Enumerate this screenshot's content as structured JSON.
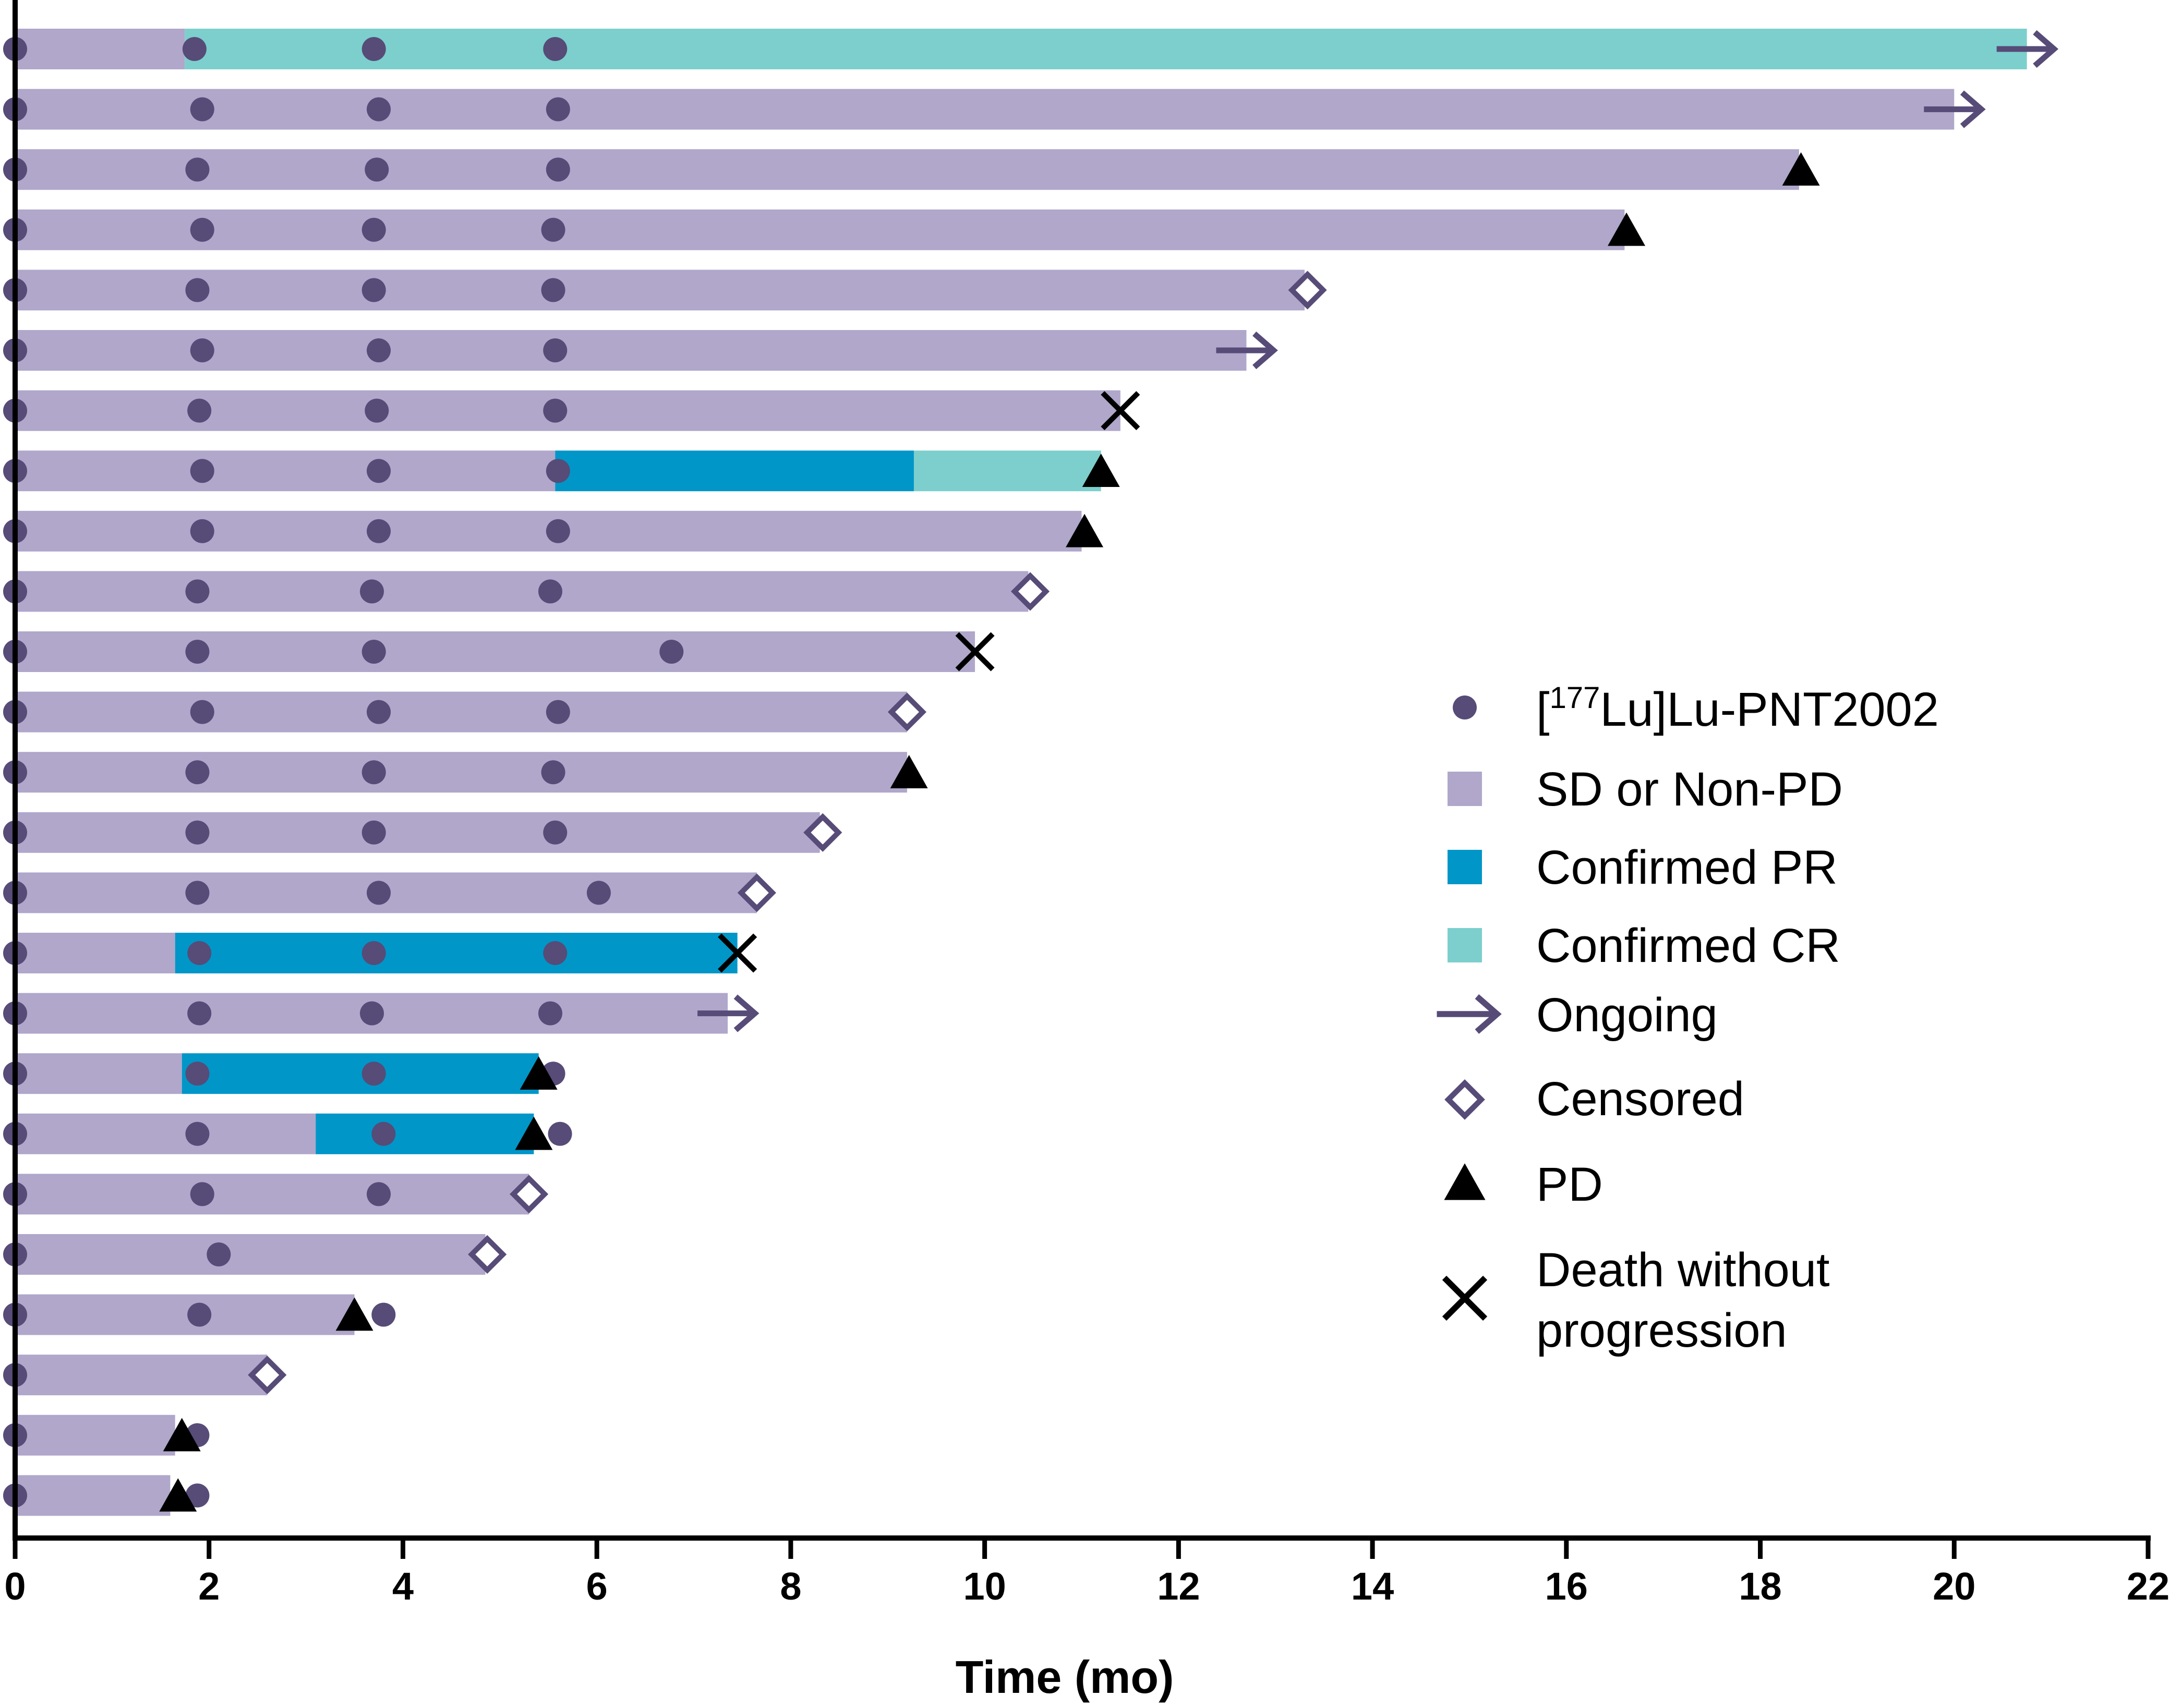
{
  "chart_data": {
    "type": "swimmer",
    "xlabel": "Time (mo)",
    "xlim": [
      0,
      22
    ],
    "xticks": [
      0,
      2,
      4,
      6,
      8,
      10,
      12,
      14,
      16,
      18,
      20,
      22
    ],
    "colors": {
      "sd": "#b0a7cb",
      "pr": "#0196c8",
      "cr": "#7ccfcc",
      "dose": "#574b78",
      "ongoing": "#574b78",
      "censored": "#574b78",
      "pd": "#000000",
      "death": "#000000",
      "axis": "#000000"
    },
    "legend": {
      "position": "right",
      "items": [
        {
          "key": "dose",
          "label_prefix": "[",
          "label_sup": "177",
          "label_rest": "Lu]Lu-PNT2002"
        },
        {
          "key": "sd",
          "label": "SD or Non-PD"
        },
        {
          "key": "pr",
          "label": "Confirmed PR"
        },
        {
          "key": "cr",
          "label": "Confirmed CR"
        },
        {
          "key": "ongoing",
          "label": "Ongoing"
        },
        {
          "key": "censored",
          "label": "Censored"
        },
        {
          "key": "pd",
          "label": "PD"
        },
        {
          "key": "death",
          "label_lines": [
            "Death without",
            "progression"
          ]
        }
      ]
    },
    "patients": [
      {
        "end": 20.75,
        "segments": [
          {
            "s": 0,
            "e": 1.75,
            "r": "sd"
          },
          {
            "s": 1.75,
            "e": 20.75,
            "r": "cr"
          }
        ],
        "doses": [
          0,
          1.85,
          3.7,
          5.57
        ],
        "marker": "ongoing",
        "marker_x": 20.75
      },
      {
        "end": 20.0,
        "segments": [
          {
            "s": 0,
            "e": 20.0,
            "r": "sd"
          }
        ],
        "doses": [
          0,
          1.93,
          3.75,
          5.6
        ],
        "marker": "ongoing",
        "marker_x": 20.0
      },
      {
        "end": 18.4,
        "segments": [
          {
            "s": 0,
            "e": 18.4,
            "r": "sd"
          }
        ],
        "doses": [
          0,
          1.88,
          3.73,
          5.6
        ],
        "marker": "pd",
        "marker_x": 18.42
      },
      {
        "end": 16.6,
        "segments": [
          {
            "s": 0,
            "e": 16.6,
            "r": "sd"
          }
        ],
        "doses": [
          0,
          1.93,
          3.7,
          5.55
        ],
        "marker": "pd",
        "marker_x": 16.62
      },
      {
        "end": 13.3,
        "segments": [
          {
            "s": 0,
            "e": 13.3,
            "r": "sd"
          }
        ],
        "doses": [
          0,
          1.88,
          3.7,
          5.55
        ],
        "marker": "censored",
        "marker_x": 13.33
      },
      {
        "end": 12.7,
        "segments": [
          {
            "s": 0,
            "e": 12.7,
            "r": "sd"
          }
        ],
        "doses": [
          0,
          1.93,
          3.75,
          5.57
        ],
        "marker": "ongoing",
        "marker_x": 12.7
      },
      {
        "end": 11.4,
        "segments": [
          {
            "s": 0,
            "e": 11.4,
            "r": "sd"
          }
        ],
        "doses": [
          0,
          1.9,
          3.73,
          5.57
        ],
        "marker": "death",
        "marker_x": 11.4
      },
      {
        "end": 11.2,
        "segments": [
          {
            "s": 0,
            "e": 5.57,
            "r": "sd"
          },
          {
            "s": 5.57,
            "e": 9.27,
            "r": "pr"
          },
          {
            "s": 9.27,
            "e": 11.2,
            "r": "cr"
          }
        ],
        "doses": [
          0,
          1.93,
          3.75,
          5.6
        ],
        "marker": "pd",
        "marker_x": 11.2
      },
      {
        "end": 11.0,
        "segments": [
          {
            "s": 0,
            "e": 11.0,
            "r": "sd"
          }
        ],
        "doses": [
          0,
          1.93,
          3.75,
          5.6
        ],
        "marker": "pd",
        "marker_x": 11.03
      },
      {
        "end": 10.45,
        "segments": [
          {
            "s": 0,
            "e": 10.45,
            "r": "sd"
          }
        ],
        "doses": [
          0,
          1.88,
          3.68,
          5.52
        ],
        "marker": "censored",
        "marker_x": 10.47
      },
      {
        "end": 9.9,
        "segments": [
          {
            "s": 0,
            "e": 9.9,
            "r": "sd"
          }
        ],
        "doses": [
          0,
          1.88,
          3.7,
          6.77
        ],
        "marker": "death",
        "marker_x": 9.9
      },
      {
        "end": 9.2,
        "segments": [
          {
            "s": 0,
            "e": 9.2,
            "r": "sd"
          }
        ],
        "doses": [
          0,
          1.93,
          3.75,
          5.6
        ],
        "marker": "censored",
        "marker_x": 9.2
      },
      {
        "end": 9.2,
        "segments": [
          {
            "s": 0,
            "e": 9.2,
            "r": "sd"
          }
        ],
        "doses": [
          0,
          1.88,
          3.7,
          5.55
        ],
        "marker": "pd",
        "marker_x": 9.22
      },
      {
        "end": 8.3,
        "segments": [
          {
            "s": 0,
            "e": 8.3,
            "r": "sd"
          }
        ],
        "doses": [
          0,
          1.88,
          3.7,
          5.57
        ],
        "marker": "censored",
        "marker_x": 8.33
      },
      {
        "end": 7.65,
        "segments": [
          {
            "s": 0,
            "e": 7.65,
            "r": "sd"
          }
        ],
        "doses": [
          0,
          1.88,
          3.75,
          6.02
        ],
        "marker": "censored",
        "marker_x": 7.65
      },
      {
        "end": 7.45,
        "segments": [
          {
            "s": 0,
            "e": 1.65,
            "r": "sd"
          },
          {
            "s": 1.65,
            "e": 7.45,
            "r": "pr"
          }
        ],
        "doses": [
          0,
          1.9,
          3.7,
          5.57
        ],
        "marker": "death",
        "marker_x": 7.45
      },
      {
        "end": 7.35,
        "segments": [
          {
            "s": 0,
            "e": 7.35,
            "r": "sd"
          }
        ],
        "doses": [
          0,
          1.9,
          3.68,
          5.52
        ],
        "marker": "ongoing",
        "marker_x": 7.35
      },
      {
        "end": 5.4,
        "segments": [
          {
            "s": 0,
            "e": 1.72,
            "r": "sd"
          },
          {
            "s": 1.72,
            "e": 5.4,
            "r": "pr"
          }
        ],
        "doses": [
          0,
          1.88,
          3.7,
          5.55
        ],
        "marker": "pd",
        "marker_x": 5.4
      },
      {
        "end": 5.35,
        "segments": [
          {
            "s": 0,
            "e": 3.1,
            "r": "sd"
          },
          {
            "s": 3.1,
            "e": 5.35,
            "r": "pr"
          }
        ],
        "doses": [
          0,
          1.88,
          3.8,
          5.62
        ],
        "marker": "pd",
        "marker_x": 5.35
      },
      {
        "end": 5.3,
        "segments": [
          {
            "s": 0,
            "e": 5.3,
            "r": "sd"
          }
        ],
        "doses": [
          0,
          1.93,
          3.75
        ],
        "marker": "censored",
        "marker_x": 5.3
      },
      {
        "end": 4.85,
        "segments": [
          {
            "s": 0,
            "e": 4.85,
            "r": "sd"
          }
        ],
        "doses": [
          0,
          2.1
        ],
        "marker": "censored",
        "marker_x": 4.87
      },
      {
        "end": 3.5,
        "segments": [
          {
            "s": 0,
            "e": 3.5,
            "r": "sd"
          }
        ],
        "doses": [
          0,
          1.9,
          3.8
        ],
        "marker": "pd",
        "marker_x": 3.5
      },
      {
        "end": 2.6,
        "segments": [
          {
            "s": 0,
            "e": 2.6,
            "r": "sd"
          }
        ],
        "doses": [
          0
        ],
        "marker": "censored",
        "marker_x": 2.6
      },
      {
        "end": 1.65,
        "segments": [
          {
            "s": 0,
            "e": 1.65,
            "r": "sd"
          }
        ],
        "doses": [
          0,
          1.88
        ],
        "marker": "pd",
        "marker_x": 1.72
      },
      {
        "end": 1.6,
        "segments": [
          {
            "s": 0,
            "e": 1.6,
            "r": "sd"
          }
        ],
        "doses": [
          0,
          1.88
        ],
        "marker": "pd",
        "marker_x": 1.68
      }
    ]
  }
}
